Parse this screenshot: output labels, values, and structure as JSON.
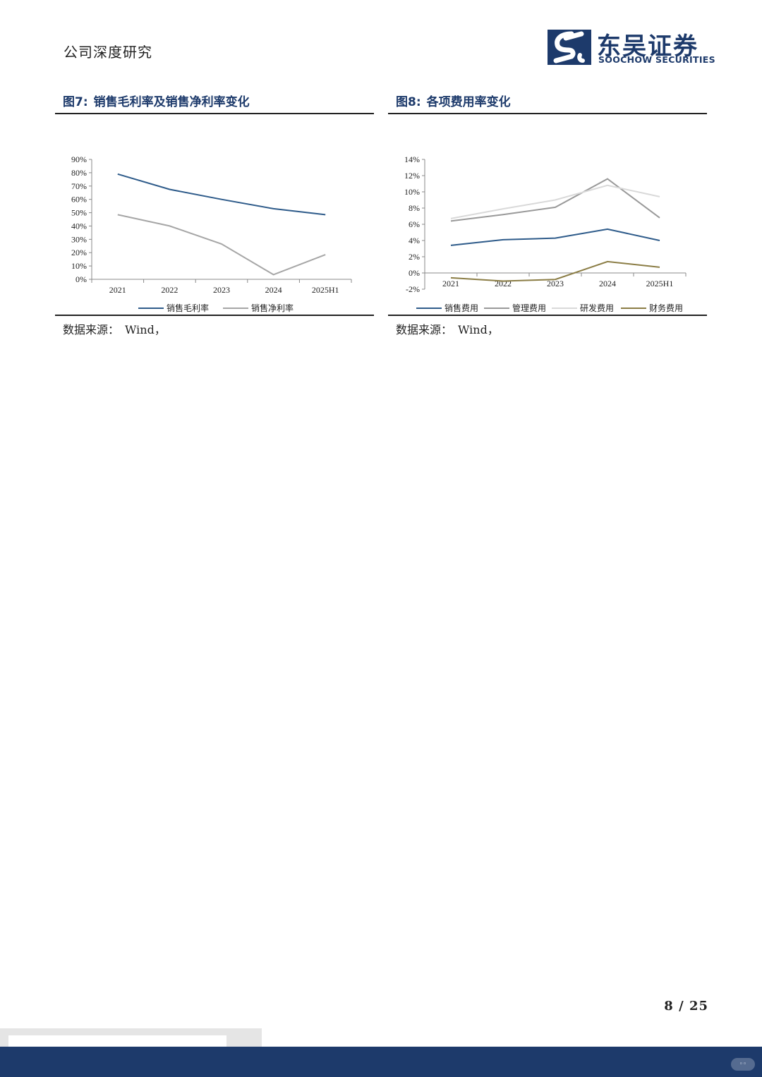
{
  "header": {
    "title": "公司深度研究"
  },
  "logo": {
    "name_cn": "东吴证券",
    "name_en": "SOOCHOW SECURITIES"
  },
  "colors": {
    "brand": "#1d3a6b"
  },
  "figures": [
    {
      "number": "图7:",
      "title": "销售毛利率及销售净利率变化",
      "source_label": "数据来源：",
      "source_value": "Wind，"
    },
    {
      "number": "图8:",
      "title": "各项费用率变化",
      "source_label": "数据来源：",
      "source_value": "Wind，"
    }
  ],
  "chart_data": [
    {
      "type": "line",
      "categories": [
        "2021",
        "2022",
        "2023",
        "2024",
        "2025H1"
      ],
      "ylim": [
        0,
        90
      ],
      "yticks": [
        "0%",
        "10%",
        "20%",
        "30%",
        "40%",
        "50%",
        "60%",
        "70%",
        "80%",
        "90%"
      ],
      "ytick_values": [
        0,
        10,
        20,
        30,
        40,
        50,
        60,
        70,
        80,
        90
      ],
      "legend_position": "bottom",
      "series": [
        {
          "name": "销售毛利率",
          "color": "#2e5b8a",
          "values": [
            79,
            67.5,
            60,
            53,
            48.5
          ]
        },
        {
          "name": "销售净利率",
          "color": "#a6a6a6",
          "values": [
            48.5,
            40,
            26.5,
            3.5,
            18.5
          ]
        }
      ]
    },
    {
      "type": "line",
      "categories": [
        "2021",
        "2022",
        "2023",
        "2024",
        "2025H1"
      ],
      "ylim": [
        -2,
        14
      ],
      "yticks": [
        "-2%",
        "0%",
        "2%",
        "4%",
        "6%",
        "8%",
        "10%",
        "12%",
        "14%"
      ],
      "ytick_values": [
        -2,
        0,
        2,
        4,
        6,
        8,
        10,
        12,
        14
      ],
      "legend_position": "bottom",
      "series": [
        {
          "name": "销售费用",
          "color": "#2e5b8a",
          "values": [
            3.4,
            4.1,
            4.3,
            5.4,
            4.0
          ]
        },
        {
          "name": "管理费用",
          "color": "#999999",
          "values": [
            6.4,
            7.2,
            8.1,
            11.6,
            6.8
          ]
        },
        {
          "name": "研发费用",
          "color": "#d9d9d9",
          "values": [
            6.7,
            7.9,
            9.0,
            10.8,
            9.4
          ]
        },
        {
          "name": "财务费用",
          "color": "#8b7d45",
          "values": [
            -0.6,
            -1.0,
            -0.8,
            1.4,
            0.7
          ]
        }
      ]
    }
  ],
  "page": {
    "current": "8",
    "separator": "/",
    "total": "25"
  }
}
